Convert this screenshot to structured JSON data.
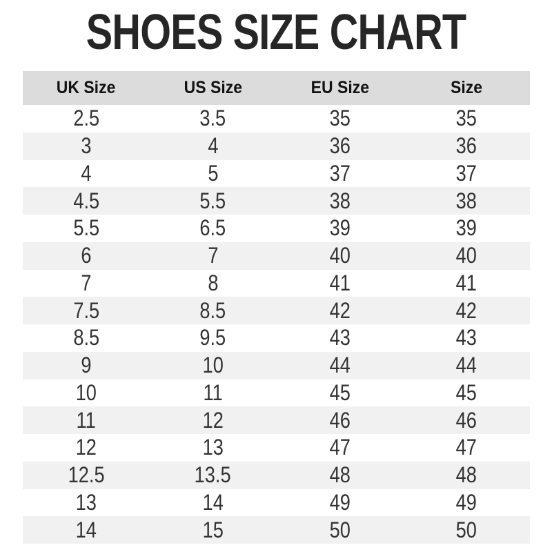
{
  "title": "SHOES SIZE CHART",
  "colors": {
    "background": "#ffffff",
    "title_text": "#262626",
    "header_bg": "#dcdcdc",
    "header_text": "#121212",
    "stripe_bg": "#f1f1f1",
    "cell_text": "#333333"
  },
  "chart_data": {
    "type": "table",
    "title": "SHOES SIZE CHART",
    "columns": [
      "UK Size",
      "US Size",
      "EU Size",
      "Size"
    ],
    "rows": [
      [
        "2.5",
        "3.5",
        "35",
        "35"
      ],
      [
        "3",
        "4",
        "36",
        "36"
      ],
      [
        "4",
        "5",
        "37",
        "37"
      ],
      [
        "4.5",
        "5.5",
        "38",
        "38"
      ],
      [
        "5.5",
        "6.5",
        "39",
        "39"
      ],
      [
        "6",
        "7",
        "40",
        "40"
      ],
      [
        "7",
        "8",
        "41",
        "41"
      ],
      [
        "7.5",
        "8.5",
        "42",
        "42"
      ],
      [
        "8.5",
        "9.5",
        "43",
        "43"
      ],
      [
        "9",
        "10",
        "44",
        "44"
      ],
      [
        "10",
        "11",
        "45",
        "45"
      ],
      [
        "11",
        "12",
        "46",
        "46"
      ],
      [
        "12",
        "13",
        "47",
        "47"
      ],
      [
        "12.5",
        "13.5",
        "48",
        "48"
      ],
      [
        "13",
        "14",
        "49",
        "49"
      ],
      [
        "14",
        "15",
        "50",
        "50"
      ]
    ],
    "layout": {
      "striped": true,
      "stripe_pattern": "even-rows-gray",
      "column_alignment": "center"
    }
  }
}
